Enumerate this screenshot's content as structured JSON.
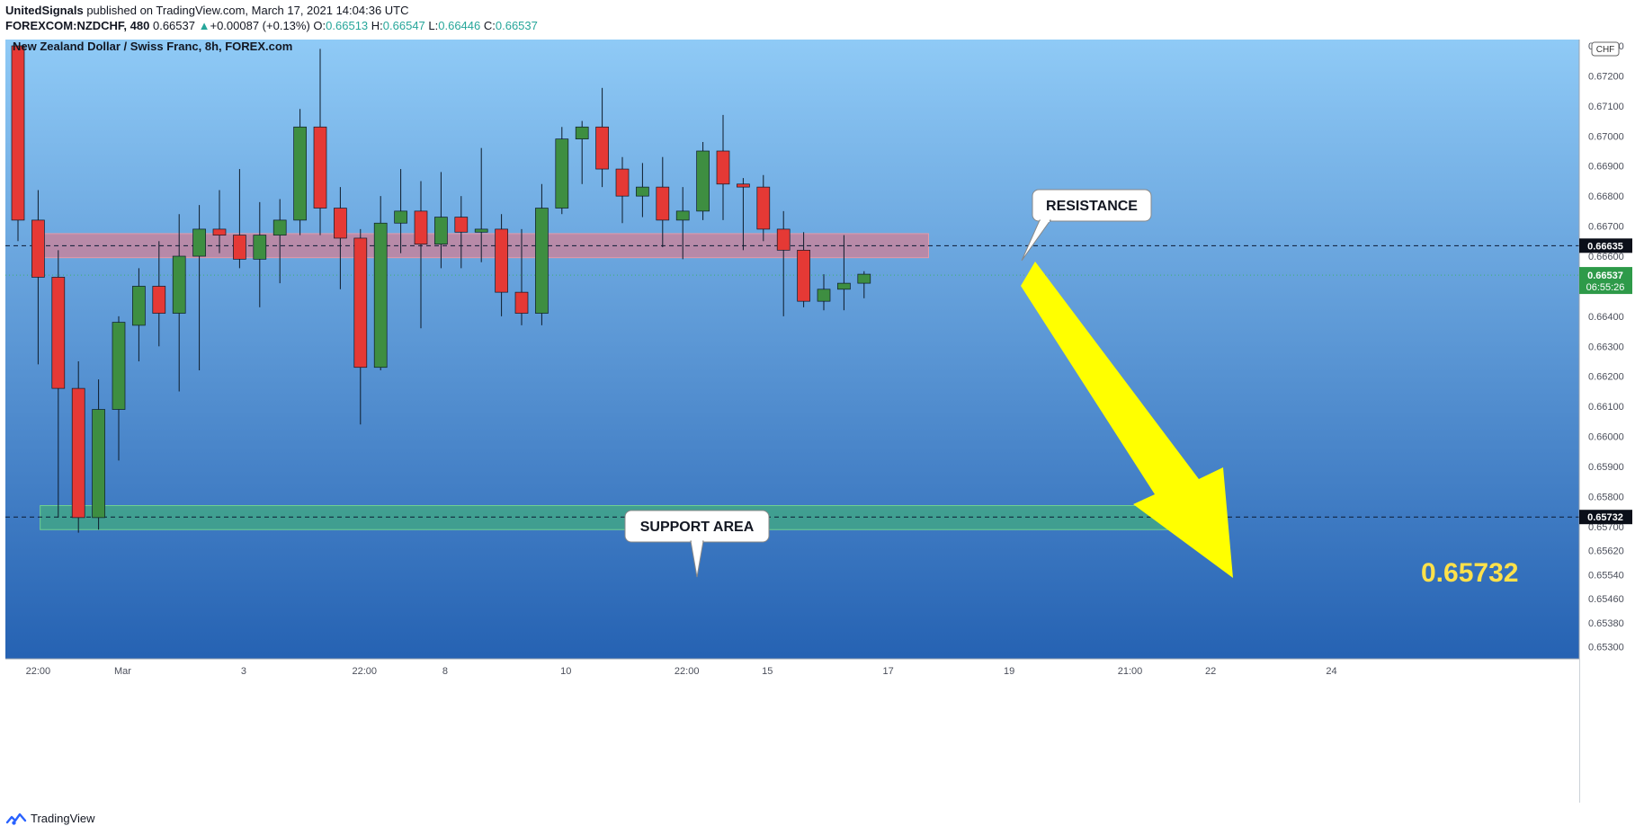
{
  "header": {
    "publisher": "UnitedSignals",
    "published_text": "published on TradingView.com, March 17, 2021 14:04:36 UTC",
    "symbol": "FOREXCOM:NZDCHF, 480",
    "last": "0.66537",
    "change_arrow": "▲",
    "change": "+0.00087 (+0.13%)",
    "o_label": "O:",
    "o_value": "0.66513",
    "h_label": "H:",
    "h_value": "0.66547",
    "l_label": "L:",
    "l_value": "0.66446",
    "c_label": "C:",
    "c_value": "0.66537"
  },
  "footer": {
    "brand": "TradingView",
    "logo_icon": "tradingview-logo-icon"
  },
  "colors": {
    "up": "#3e8e41",
    "down": "#e53935",
    "bg_top": "#8fcaf6",
    "bg_bottom": "#0d4aa3",
    "resistance_zone": "#e07a8a",
    "support_zone": "#43b86f",
    "arrow": "#ffff00",
    "target_text": "#ffe14a",
    "current_price_tag": "#2e9a49"
  },
  "chart_data": {
    "type": "candlestick",
    "title": "New Zealand Dollar / Swiss Franc, 8h, FOREX.com",
    "currency_badge": "CHF",
    "y_ticks": [
      "0.67300",
      "0.67200",
      "0.67100",
      "0.67000",
      "0.66900",
      "0.66800",
      "0.66700",
      "0.66600",
      "0.66400",
      "0.66300",
      "0.66200",
      "0.66100",
      "0.66000",
      "0.65900",
      "0.65800",
      "0.65700",
      "0.65620",
      "0.65540",
      "0.65460",
      "0.65380",
      "0.65300"
    ],
    "ylim": [
      0.6526,
      0.673
    ],
    "x_ticks": [
      {
        "label": "22:00",
        "i": 1
      },
      {
        "label": "Mar",
        "i": 5.2
      },
      {
        "label": "3",
        "i": 11.2
      },
      {
        "label": "22:00",
        "i": 17.2
      },
      {
        "label": "8",
        "i": 21.2
      },
      {
        "label": "10",
        "i": 27.2
      },
      {
        "label": "22:00",
        "i": 33.2
      },
      {
        "label": "15",
        "i": 37.2
      },
      {
        "label": "17",
        "i": 43.2
      },
      {
        "label": "19",
        "i": 49.2
      },
      {
        "label": "21:00",
        "i": 55.2
      },
      {
        "label": "22",
        "i": 59.2
      },
      {
        "label": "24",
        "i": 65.2
      }
    ],
    "candles": [
      {
        "o": 0.673,
        "h": 0.673,
        "l": 0.6665,
        "c": 0.6672
      },
      {
        "o": 0.6672,
        "h": 0.6682,
        "l": 0.6624,
        "c": 0.6653
      },
      {
        "o": 0.6653,
        "h": 0.6662,
        "l": 0.6573,
        "c": 0.6616
      },
      {
        "o": 0.6616,
        "h": 0.6625,
        "l": 0.6568,
        "c": 0.6573
      },
      {
        "o": 0.6573,
        "h": 0.6619,
        "l": 0.6569,
        "c": 0.6609
      },
      {
        "o": 0.6609,
        "h": 0.664,
        "l": 0.6592,
        "c": 0.6638
      },
      {
        "o": 0.6637,
        "h": 0.6656,
        "l": 0.6625,
        "c": 0.665
      },
      {
        "o": 0.665,
        "h": 0.6665,
        "l": 0.663,
        "c": 0.6641
      },
      {
        "o": 0.6641,
        "h": 0.6674,
        "l": 0.6615,
        "c": 0.666
      },
      {
        "o": 0.666,
        "h": 0.6677,
        "l": 0.6622,
        "c": 0.6669
      },
      {
        "o": 0.6669,
        "h": 0.6682,
        "l": 0.6661,
        "c": 0.6667
      },
      {
        "o": 0.6667,
        "h": 0.6689,
        "l": 0.6656,
        "c": 0.6659
      },
      {
        "o": 0.6659,
        "h": 0.6678,
        "l": 0.6643,
        "c": 0.6667
      },
      {
        "o": 0.6667,
        "h": 0.6679,
        "l": 0.6651,
        "c": 0.6672
      },
      {
        "o": 0.6672,
        "h": 0.6709,
        "l": 0.6667,
        "c": 0.6703
      },
      {
        "o": 0.6703,
        "h": 0.6729,
        "l": 0.6667,
        "c": 0.6676
      },
      {
        "o": 0.6676,
        "h": 0.6683,
        "l": 0.6649,
        "c": 0.6666
      },
      {
        "o": 0.6666,
        "h": 0.6669,
        "l": 0.6604,
        "c": 0.6623
      },
      {
        "o": 0.6623,
        "h": 0.668,
        "l": 0.6622,
        "c": 0.6671
      },
      {
        "o": 0.6671,
        "h": 0.6689,
        "l": 0.6661,
        "c": 0.6675
      },
      {
        "o": 0.6675,
        "h": 0.6685,
        "l": 0.6636,
        "c": 0.6664
      },
      {
        "o": 0.6664,
        "h": 0.6688,
        "l": 0.6656,
        "c": 0.6673
      },
      {
        "o": 0.6673,
        "h": 0.668,
        "l": 0.6656,
        "c": 0.6668
      },
      {
        "o": 0.6668,
        "h": 0.6696,
        "l": 0.6658,
        "c": 0.6669
      },
      {
        "o": 0.6669,
        "h": 0.6674,
        "l": 0.664,
        "c": 0.6648
      },
      {
        "o": 0.6648,
        "h": 0.6669,
        "l": 0.6637,
        "c": 0.6641
      },
      {
        "o": 0.6641,
        "h": 0.6684,
        "l": 0.6637,
        "c": 0.6676
      },
      {
        "o": 0.6676,
        "h": 0.6703,
        "l": 0.6674,
        "c": 0.6699
      },
      {
        "o": 0.6699,
        "h": 0.6705,
        "l": 0.6684,
        "c": 0.6703
      },
      {
        "o": 0.6703,
        "h": 0.6716,
        "l": 0.6683,
        "c": 0.6689
      },
      {
        "o": 0.6689,
        "h": 0.6693,
        "l": 0.6671,
        "c": 0.668
      },
      {
        "o": 0.668,
        "h": 0.6691,
        "l": 0.6673,
        "c": 0.6683
      },
      {
        "o": 0.6683,
        "h": 0.6693,
        "l": 0.6663,
        "c": 0.6672
      },
      {
        "o": 0.6672,
        "h": 0.6683,
        "l": 0.6659,
        "c": 0.6675
      },
      {
        "o": 0.6675,
        "h": 0.6698,
        "l": 0.6672,
        "c": 0.6695
      },
      {
        "o": 0.6695,
        "h": 0.6707,
        "l": 0.6672,
        "c": 0.6684
      },
      {
        "o": 0.6684,
        "h": 0.6686,
        "l": 0.6662,
        "c": 0.6683
      },
      {
        "o": 0.6683,
        "h": 0.6687,
        "l": 0.6665,
        "c": 0.6669
      },
      {
        "o": 0.6669,
        "h": 0.6675,
        "l": 0.664,
        "c": 0.6662
      },
      {
        "o": 0.6662,
        "h": 0.6668,
        "l": 0.6643,
        "c": 0.6645
      },
      {
        "o": 0.6645,
        "h": 0.6654,
        "l": 0.6642,
        "c": 0.6649
      },
      {
        "o": 0.6649,
        "h": 0.6667,
        "l": 0.6642,
        "c": 0.6651
      },
      {
        "o": 0.6651,
        "h": 0.6655,
        "l": 0.6646,
        "c": 0.6654
      }
    ],
    "resistance_zone": {
      "from": 0.66595,
      "to": 0.66675,
      "i_start": 1.1,
      "i_end": 45.2
    },
    "support_zone": {
      "from": 0.6569,
      "to": 0.6577,
      "i_start": 1.1,
      "i_end": 57.7
    },
    "labels": {
      "resistance": "RESISTANCE",
      "support": "SUPPORT AREA",
      "target": "0.65732"
    },
    "price_lines": [
      {
        "price": 0.66635,
        "label": "0.66635",
        "style": "dashed"
      },
      {
        "price": 0.65732,
        "label": "0.65732",
        "style": "dashed"
      }
    ],
    "current_price": {
      "price": 0.66537,
      "label": "0.66537",
      "countdown": "06:55:26"
    },
    "event_flags": [
      "nz-flag-icon",
      "ch-flag-icon"
    ]
  }
}
